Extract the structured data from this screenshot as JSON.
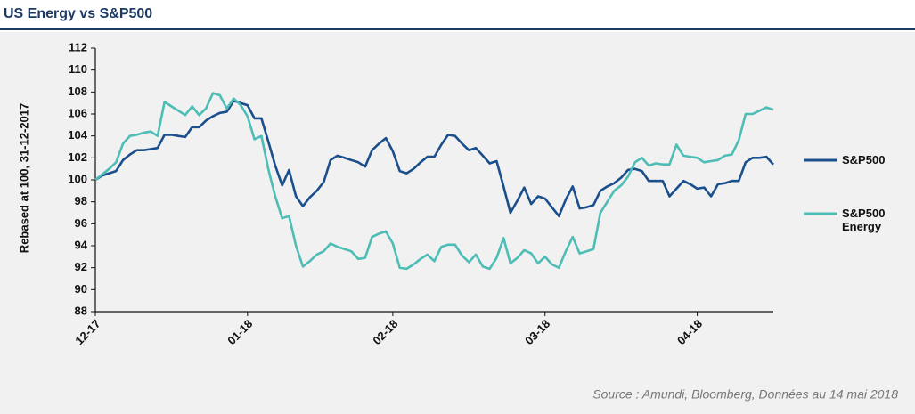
{
  "chart_data": {
    "type": "line",
    "title": "US Energy vs S&P500",
    "ylabel": "Rebased at 100, 31-12-2017",
    "source": "Source : Amundi,  Bloomberg,  Données au 14 mai 2018",
    "categories": [
      "12-17",
      null,
      null,
      null,
      null,
      null,
      null,
      null,
      null,
      null,
      null,
      null,
      null,
      null,
      null,
      null,
      null,
      null,
      null,
      null,
      null,
      null,
      "01-18",
      null,
      null,
      null,
      null,
      null,
      null,
      null,
      null,
      null,
      null,
      null,
      null,
      null,
      null,
      null,
      null,
      null,
      null,
      null,
      null,
      "02-18",
      null,
      null,
      null,
      null,
      null,
      null,
      null,
      null,
      null,
      null,
      null,
      null,
      null,
      null,
      null,
      null,
      null,
      null,
      null,
      null,
      null,
      "03-18",
      null,
      null,
      null,
      null,
      null,
      null,
      null,
      null,
      null,
      null,
      null,
      null,
      null,
      null,
      null,
      null,
      null,
      null,
      null,
      null,
      null,
      "04-18",
      null,
      null,
      null,
      null,
      null,
      null,
      null,
      null,
      null,
      null,
      null
    ],
    "series": [
      {
        "name": "S&P500",
        "color": "#1a4f8b",
        "values": [
          100,
          100.4,
          100.6,
          100.8,
          101.8,
          102.3,
          102.7,
          102.7,
          102.8,
          102.9,
          104.1,
          104.1,
          104.0,
          103.9,
          104.8,
          104.8,
          105.4,
          105.8,
          106.1,
          106.2,
          107.2,
          107.0,
          106.8,
          105.6,
          105.6,
          103.5,
          101.3,
          99.5,
          100.9,
          98.5,
          97.6,
          98.4,
          99.0,
          99.8,
          101.8,
          102.2,
          102.0,
          101.8,
          101.6,
          101.2,
          102.7,
          103.3,
          103.8,
          102.6,
          100.8,
          100.6,
          101.0,
          101.6,
          102.1,
          102.1,
          103.2,
          104.1,
          104.0,
          103.3,
          102.7,
          102.9,
          102.2,
          101.5,
          101.7,
          99.4,
          97.0,
          98.1,
          99.3,
          97.8,
          98.5,
          98.3,
          97.5,
          96.7,
          98.2,
          99.4,
          97.4,
          97.5,
          97.7,
          99.0,
          99.4,
          99.7,
          100.2,
          100.9,
          101.0,
          100.8,
          99.9,
          99.9,
          99.9,
          98.5,
          99.2,
          99.9,
          99.6,
          99.2,
          99.3,
          98.5,
          99.6,
          99.7,
          99.9,
          99.9,
          101.6,
          102.0,
          102.0,
          102.1,
          101.4
        ]
      },
      {
        "name": "S&P500 Energy",
        "color": "#4dbdb5",
        "values": [
          100,
          100.5,
          101.0,
          101.6,
          103.3,
          104.0,
          104.1,
          104.3,
          104.4,
          104.0,
          107.1,
          106.7,
          106.3,
          105.9,
          106.7,
          105.9,
          106.5,
          107.9,
          107.7,
          106.5,
          107.4,
          106.8,
          105.8,
          103.7,
          104.0,
          101.0,
          98.5,
          96.5,
          96.7,
          94.0,
          92.1,
          92.6,
          93.2,
          93.5,
          94.2,
          93.9,
          93.7,
          93.5,
          92.8,
          92.9,
          94.8,
          95.1,
          95.3,
          94.2,
          92.0,
          91.9,
          92.3,
          92.8,
          93.2,
          92.6,
          93.9,
          94.1,
          94.1,
          93.1,
          92.5,
          93.2,
          92.1,
          91.9,
          92.9,
          94.7,
          92.4,
          92.9,
          93.6,
          93.3,
          92.4,
          93.0,
          92.3,
          92.0,
          93.5,
          94.8,
          93.3,
          93.5,
          93.7,
          97.0,
          98.0,
          99.0,
          99.5,
          100.3,
          101.6,
          102.0,
          101.3,
          101.5,
          101.4,
          101.4,
          103.2,
          102.2,
          102.1,
          102.0,
          101.6,
          101.7,
          101.8,
          102.2,
          102.3,
          103.6,
          106.0,
          106.0,
          106.3,
          106.6,
          106.4
        ]
      }
    ],
    "ylim": [
      88,
      112
    ],
    "yticks": [
      88,
      90,
      92,
      94,
      96,
      98,
      100,
      102,
      104,
      106,
      108,
      110,
      112
    ],
    "grid": false,
    "legend": "right"
  }
}
